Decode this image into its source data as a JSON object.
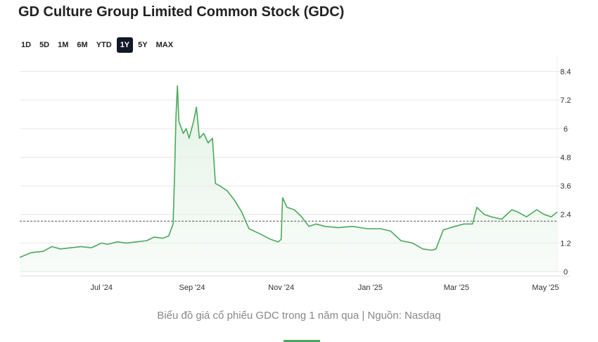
{
  "header": {
    "title": "GD Culture Group Limited Common Stock (GDC)"
  },
  "ranges": {
    "items": [
      {
        "label": "1D",
        "active": false
      },
      {
        "label": "5D",
        "active": false
      },
      {
        "label": "1M",
        "active": false
      },
      {
        "label": "6M",
        "active": false
      },
      {
        "label": "YTD",
        "active": false
      },
      {
        "label": "1Y",
        "active": true
      },
      {
        "label": "5Y",
        "active": false
      },
      {
        "label": "MAX",
        "active": false
      }
    ]
  },
  "caption": {
    "text": "Biểu đồ giá cổ phiếu GDC trong 1 năm qua | Nguồn: Nasdaq"
  },
  "colors": {
    "line": "#4aa85c",
    "fill": "#e4f3e6",
    "grid": "#e6e6e6",
    "reference": "#555555",
    "active_button": "#111827"
  },
  "chart_data": {
    "type": "area",
    "title": "",
    "xlabel": "",
    "ylabel": "",
    "ylim": [
      0,
      8.8
    ],
    "y_ticks": [
      "0",
      "1.2",
      "2.4",
      "3.6",
      "4.8",
      "6",
      "7.2",
      "8.4"
    ],
    "y_tick_values": [
      0,
      1.2,
      2.4,
      3.6,
      4.8,
      6,
      7.2,
      8.4
    ],
    "y_axis_position": "right",
    "grid": true,
    "x_ticks": [
      "Jul '24",
      "Sep '24",
      "Nov '24",
      "Jan '25",
      "Mar '25",
      "May '25"
    ],
    "x_tick_dates": [
      "2024-07-01",
      "2024-09-01",
      "2024-11-01",
      "2025-01-01",
      "2025-03-01",
      "2025-05-01"
    ],
    "xlim": [
      "2024-05-06",
      "2025-05-09"
    ],
    "reference_value": 2.12,
    "series": [
      {
        "x": [
          "2024-05-06",
          "2024-05-14",
          "2024-05-22",
          "2024-05-28",
          "2024-06-03",
          "2024-06-10",
          "2024-06-17",
          "2024-06-24",
          "2024-07-01",
          "2024-07-05",
          "2024-07-12",
          "2024-07-18",
          "2024-07-25",
          "2024-08-01",
          "2024-08-06",
          "2024-08-12",
          "2024-08-16",
          "2024-08-19",
          "2024-08-20",
          "2024-08-21",
          "2024-08-22",
          "2024-08-23",
          "2024-08-26",
          "2024-08-28",
          "2024-08-30",
          "2024-09-02",
          "2024-09-04",
          "2024-09-06",
          "2024-09-09",
          "2024-09-12",
          "2024-09-15",
          "2024-09-17",
          "2024-09-20",
          "2024-09-25",
          "2024-09-30",
          "2024-10-05",
          "2024-10-10",
          "2024-10-17",
          "2024-10-25",
          "2024-10-30",
          "2024-11-01",
          "2024-11-02",
          "2024-11-05",
          "2024-11-10",
          "2024-11-15",
          "2024-11-20",
          "2024-11-25",
          "2024-12-01",
          "2024-12-10",
          "2024-12-20",
          "2024-12-30",
          "2025-01-08",
          "2025-01-15",
          "2025-01-22",
          "2025-01-30",
          "2025-02-06",
          "2025-02-12",
          "2025-02-15",
          "2025-02-20",
          "2025-02-28",
          "2025-03-06",
          "2025-03-12",
          "2025-03-15",
          "2025-03-20",
          "2025-03-25",
          "2025-04-01",
          "2025-04-08",
          "2025-04-12",
          "2025-04-18",
          "2025-04-25",
          "2025-04-30",
          "2025-05-05",
          "2025-05-09"
        ],
        "y": [
          0.6,
          0.8,
          0.85,
          1.05,
          0.95,
          1.0,
          1.05,
          1.0,
          1.2,
          1.15,
          1.25,
          1.2,
          1.25,
          1.3,
          1.45,
          1.4,
          1.5,
          2.0,
          4.0,
          6.5,
          7.8,
          6.3,
          5.8,
          6.0,
          5.6,
          6.3,
          6.9,
          5.6,
          5.8,
          5.4,
          5.6,
          3.7,
          3.6,
          3.4,
          3.0,
          2.5,
          1.8,
          1.6,
          1.35,
          1.25,
          1.35,
          3.1,
          2.7,
          2.6,
          2.3,
          1.9,
          2.0,
          1.9,
          1.85,
          1.9,
          1.8,
          1.8,
          1.7,
          1.3,
          1.2,
          0.95,
          0.9,
          0.95,
          1.75,
          1.9,
          2.0,
          2.0,
          2.7,
          2.4,
          2.3,
          2.2,
          2.6,
          2.5,
          2.3,
          2.6,
          2.4,
          2.3,
          2.5
        ]
      }
    ]
  }
}
